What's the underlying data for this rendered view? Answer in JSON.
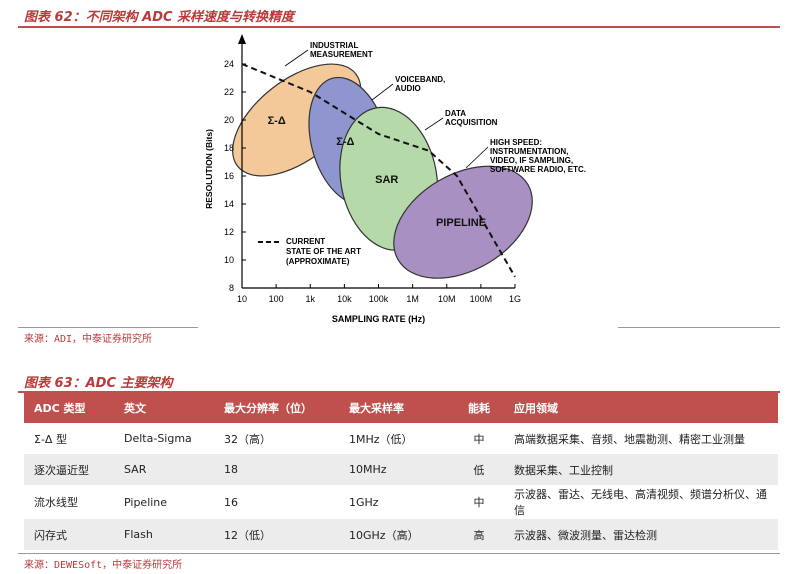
{
  "figure1": {
    "title": "图表 62：不同架构 ADC 采样速度与转换精度",
    "source": "来源：ADI，中泰证券研究所"
  },
  "figure2": {
    "title": "图表 63：ADC 主要架构",
    "source": "来源：DEWESoft，中泰证券研究所"
  },
  "chart_data": {
    "type": "area",
    "title": "",
    "xlabel": "SAMPLING RATE (Hz)",
    "ylabel": "RESOLUTION (Bits)",
    "x_scale": "log",
    "x_ticks": [
      "10",
      "100",
      "1k",
      "10k",
      "100k",
      "1M",
      "10M",
      "100M",
      "1G"
    ],
    "x_tick_values": [
      10,
      100,
      1000,
      10000,
      100000,
      1000000,
      10000000,
      100000000,
      1000000000
    ],
    "y_ticks": [
      "8",
      "10",
      "12",
      "14",
      "16",
      "18",
      "20",
      "22",
      "24"
    ],
    "ylim": [
      8,
      25
    ],
    "regions": [
      {
        "label": "Σ-Δ",
        "color": "#f3c99a",
        "cx": 400,
        "cy": 20,
        "angle": -38
      },
      {
        "label": "Σ-Δ",
        "color": "#8f95cf",
        "cx": 14000,
        "cy": 18.5,
        "angle": -15
      },
      {
        "label": "SAR",
        "color": "#b5d9a9",
        "cx": 200000,
        "cy": 15.8,
        "angle": -10
      },
      {
        "label": "PIPELINE",
        "color": "#a890c2",
        "cx": 30000000,
        "cy": 12.7,
        "angle": -30
      }
    ],
    "annotations": [
      {
        "label": "INDUSTRIAL\nMEASUREMENT",
        "target": "Σ-Δ industrial"
      },
      {
        "label": "VOICEBAND,\nAUDIO",
        "target": "Σ-Δ voiceband"
      },
      {
        "label": "DATA\nACQUISITION",
        "target": "SAR"
      },
      {
        "label": "HIGH SPEED:\nINSTRUMENTATION,\nVIDEO, IF SAMPLING,\nSOFTWARE RADIO, ETC.",
        "target": "PIPELINE"
      }
    ],
    "series": [
      {
        "name": "CURRENT STATE OF THE ART (APPROXIMATE)",
        "style": "dashed",
        "points": [
          [
            10,
            24
          ],
          [
            1000,
            22
          ],
          [
            100000,
            19
          ],
          [
            3000000,
            17.8
          ],
          [
            20000000,
            16
          ],
          [
            300000000,
            11
          ],
          [
            1000000000,
            8.8
          ]
        ]
      }
    ],
    "legend": "CURRENT\nSTATE OF THE ART\n(APPROXIMATE)"
  },
  "table": {
    "headers": [
      "ADC 类型",
      "英文",
      "最大分辨率（位）",
      "最大采样率",
      "能耗",
      "应用领域"
    ],
    "rows": [
      [
        "Σ-Δ 型",
        "Delta-Sigma",
        "32（高）",
        "1MHz（低）",
        "中",
        "高端数据采集、音频、地震勘测、精密工业测量"
      ],
      [
        "逐次逼近型",
        "SAR",
        "18",
        "10MHz",
        "低",
        "数据采集、工业控制"
      ],
      [
        "流水线型",
        "Pipeline",
        "16",
        "1GHz",
        "中",
        "示波器、雷达、无线电、高清视频、频谱分析仪、通信"
      ],
      [
        "闪存式",
        "Flash",
        "12（低）",
        "10GHz（高）",
        "高",
        "示波器、微波测量、雷达检测"
      ]
    ]
  }
}
